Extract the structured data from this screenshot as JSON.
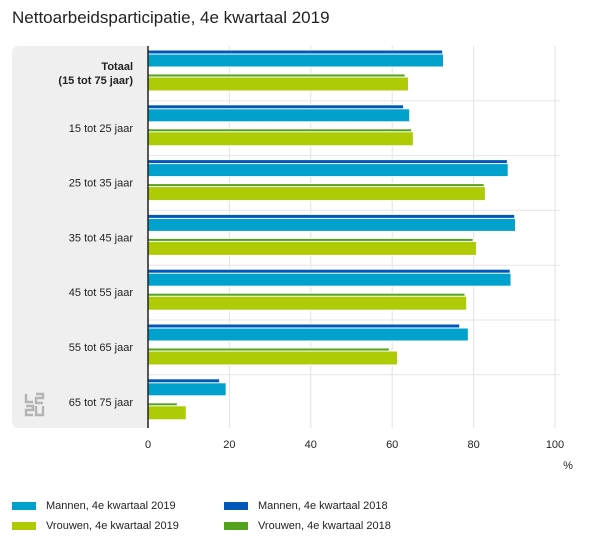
{
  "title": "Nettoarbeidsparticipatie, 4e kwartaal 2019",
  "unit": "%",
  "colors": {
    "mannen_2019": "#00a1cd",
    "mannen_2018": "#0058b8",
    "vrouwen_2019": "#afcb05",
    "vrouwen_2018": "#53a31d",
    "panel": "#efefef",
    "grid": "#e2e2e2"
  },
  "legend": [
    {
      "label": "Mannen, 4e kwartaal 2019",
      "color": "#00a1cd"
    },
    {
      "label": "Mannen, 4e kwartaal 2018",
      "color": "#0058b8"
    },
    {
      "label": "Vrouwen, 4e kwartaal 2019",
      "color": "#afcb05"
    },
    {
      "label": "Vrouwen, 4e kwartaal 2018",
      "color": "#53a31d"
    }
  ],
  "logo_icon": "cbs-logo-icon",
  "chart_data": {
    "type": "bar",
    "orientation": "horizontal",
    "title": "Nettoarbeidsparticipatie, 4e kwartaal 2019",
    "xlabel": "%",
    "xlim": [
      0,
      100
    ],
    "xticks": [
      0,
      20,
      40,
      60,
      80,
      100
    ],
    "grid": true,
    "categories": [
      [
        "Totaal",
        "(15 tot 75 jaar)"
      ],
      [
        "15 tot 25 jaar"
      ],
      [
        "25 tot 35 jaar"
      ],
      [
        "35 tot 45 jaar"
      ],
      [
        "45 tot 55 jaar"
      ],
      [
        "55 tot 65 jaar"
      ],
      [
        "65 tot 75 jaar"
      ]
    ],
    "series": [
      {
        "name": "Mannen, 4e kwartaal 2019",
        "values": [
          72.6,
          64.3,
          88.5,
          90.3,
          89.2,
          78.7,
          19.2
        ]
      },
      {
        "name": "Mannen, 4e kwartaal 2018",
        "values": [
          72.4,
          62.8,
          88.3,
          90.1,
          89.0,
          76.6,
          17.6
        ]
      },
      {
        "name": "Vrouwen, 4e kwartaal 2019",
        "values": [
          64.0,
          65.2,
          82.9,
          80.7,
          78.3,
          61.3,
          9.4
        ]
      },
      {
        "name": "Vrouwen, 4e kwartaal 2018",
        "values": [
          63.2,
          64.8,
          82.6,
          79.9,
          77.9,
          59.3,
          7.2
        ]
      }
    ]
  }
}
